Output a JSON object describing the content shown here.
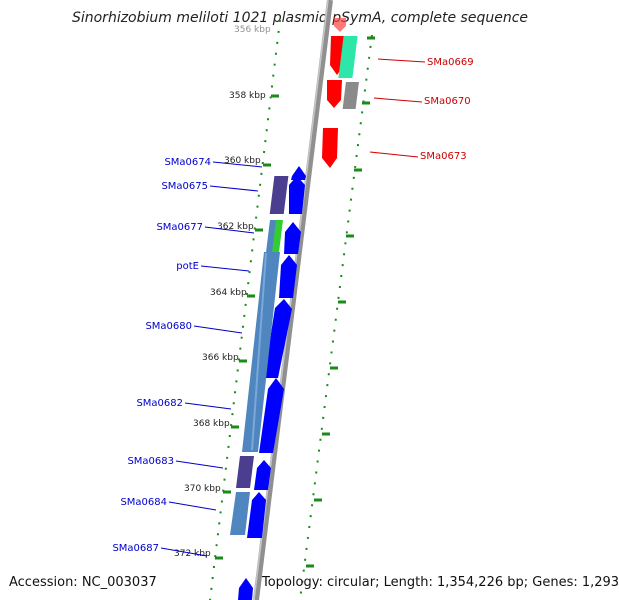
{
  "title": "Sinorhizobium meliloti 1021 plasmid pSymA, complete sequence",
  "footer": {
    "accession": "Accession: NC_003037",
    "topology": "Topology: circular; Length: 1,354,226 bp; Genes: 1,293"
  },
  "colors": {
    "backbone": "#8c8c8c",
    "reverse_strand_gene": "#ff0000",
    "forward_strand_gene": "#0000ff",
    "forward_label": "#0000cc",
    "reverse_label": "#cc0000",
    "ruler_dots": "#1a8a1a",
    "cog_teal": "#2ee6a8",
    "cog_gray": "#8a8a8a",
    "cog_purple": "#4b3e8e",
    "cog_green": "#33cc33",
    "cog_steelblue": "#4f86c0"
  },
  "scale_labels": [
    "356 kbp",
    "358 kbp",
    "360 kbp",
    "362 kbp",
    "364 kbp",
    "366 kbp",
    "368 kbp",
    "370 kbp",
    "372 kbp"
  ],
  "genes_reverse": [
    "SMa0669",
    "SMa0670",
    "SMa0673"
  ],
  "genes_forward": [
    "SMa0674",
    "SMa0675",
    "SMa0677",
    "potE",
    "SMa0680",
    "SMa0682",
    "SMa0683",
    "SMa0684",
    "SMa0687"
  ]
}
